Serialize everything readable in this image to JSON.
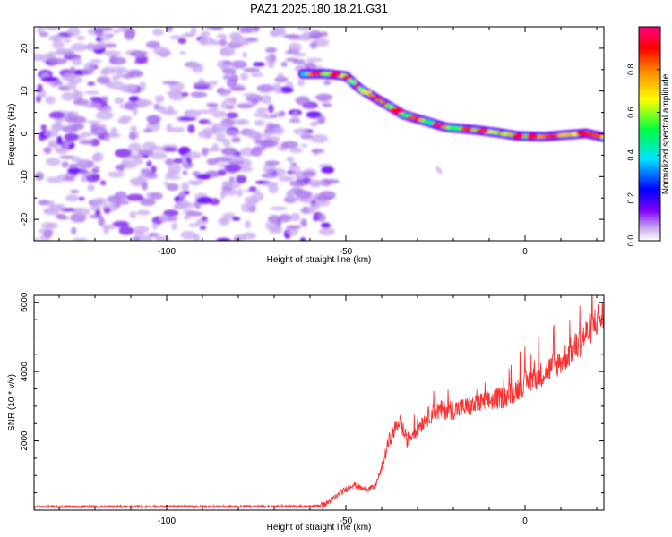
{
  "title": "PAZ1.2025.180.18.21.G31",
  "chart_data": [
    {
      "type": "heatmap",
      "xlabel": "Height of straight line (km)",
      "ylabel": "Frequency (Hz)",
      "xlim": [
        -137,
        22
      ],
      "ylim": [
        -25,
        25
      ],
      "xticks": [
        -100,
        -50,
        0
      ],
      "yticks": [
        -20,
        -10,
        0,
        10,
        20
      ],
      "colorbar": {
        "label": "Normalized spectral amplitude",
        "range": [
          0,
          1
        ],
        "ticks": [
          "0.0",
          "0.2",
          "0.4",
          "0.6",
          "0.8"
        ],
        "colors": [
          "#ffffff",
          "#b8a0e8",
          "#8000ff",
          "#0000ff",
          "#00e0ff",
          "#00ff40",
          "#ffff00",
          "#ff8000",
          "#ff0000",
          "#ff0080"
        ]
      },
      "noise_region": {
        "x": [
          -137,
          -55
        ],
        "y": [
          -25,
          25
        ],
        "max_amplitude": 0.3
      },
      "signal_track": [
        {
          "x": -62,
          "freq": 14.0
        },
        {
          "x": -55,
          "freq": 14.0
        },
        {
          "x": -50,
          "freq": 13.5
        },
        {
          "x": -46,
          "freq": 10.5
        },
        {
          "x": -42,
          "freq": 8.5
        },
        {
          "x": -38,
          "freq": 6.5
        },
        {
          "x": -34,
          "freq": 4.5
        },
        {
          "x": -28,
          "freq": 3.0
        },
        {
          "x": -22,
          "freq": 1.5
        },
        {
          "x": -15,
          "freq": 1.0
        },
        {
          "x": -8,
          "freq": 0.3
        },
        {
          "x": -2,
          "freq": -0.5
        },
        {
          "x": 5,
          "freq": -0.7
        },
        {
          "x": 12,
          "freq": -0.2
        },
        {
          "x": 17,
          "freq": 0.1
        },
        {
          "x": 22,
          "freq": -0.8
        }
      ]
    },
    {
      "type": "line",
      "xlabel": "Height of straight line (km)",
      "ylabel": "SNR (10 * v/v)",
      "xlim": [
        -137,
        22
      ],
      "ylim": [
        0,
        6200
      ],
      "xticks": [
        -100,
        -50,
        0
      ],
      "yticks": [
        2000,
        4000,
        6000
      ],
      "color": "#ff3030",
      "trend": [
        {
          "x": -137,
          "y": 100
        },
        {
          "x": -60,
          "y": 110
        },
        {
          "x": -56,
          "y": 150
        },
        {
          "x": -52,
          "y": 450
        },
        {
          "x": -48,
          "y": 750
        },
        {
          "x": -45,
          "y": 600
        },
        {
          "x": -42,
          "y": 650
        },
        {
          "x": -40,
          "y": 1200
        },
        {
          "x": -38,
          "y": 2000
        },
        {
          "x": -35,
          "y": 2600
        },
        {
          "x": -33,
          "y": 2000
        },
        {
          "x": -30,
          "y": 2400
        },
        {
          "x": -26,
          "y": 2800
        },
        {
          "x": -23,
          "y": 2900
        },
        {
          "x": -20,
          "y": 2900
        },
        {
          "x": -15,
          "y": 3000
        },
        {
          "x": -10,
          "y": 3150
        },
        {
          "x": -5,
          "y": 3300
        },
        {
          "x": 0,
          "y": 3650
        },
        {
          "x": 5,
          "y": 3950
        },
        {
          "x": 10,
          "y": 4300
        },
        {
          "x": 15,
          "y": 4800
        },
        {
          "x": 20,
          "y": 5500
        },
        {
          "x": 22,
          "y": 5600
        }
      ]
    }
  ]
}
